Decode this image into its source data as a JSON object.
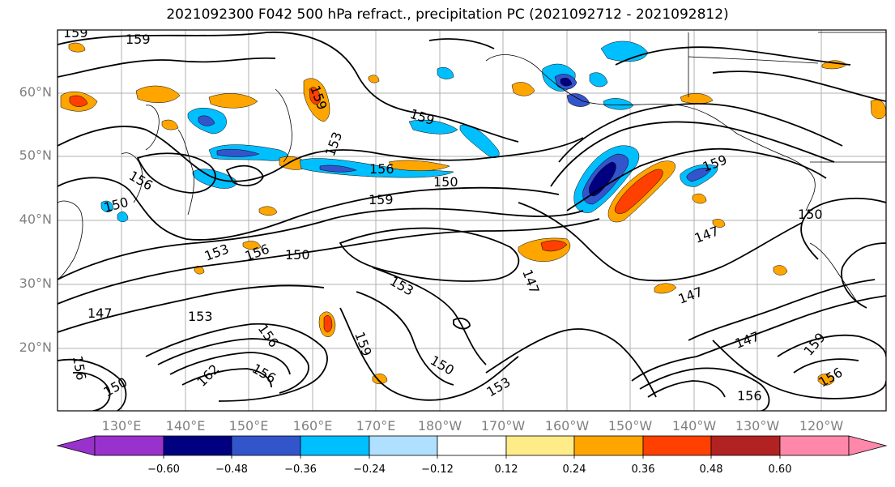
{
  "title": "2021092300 F042 500 hPa refract., precipitation PC (2021092712 - 2021092812)",
  "map": {
    "lat_labels": [
      "60°N",
      "50°N",
      "40°N",
      "30°N",
      "20°N"
    ],
    "lon_labels": [
      "130°E",
      "140°E",
      "150°E",
      "160°E",
      "170°E",
      "180°W",
      "170°W",
      "160°W",
      "150°W",
      "140°W",
      "130°W",
      "120°W"
    ],
    "contour_labels": [
      "159",
      "159",
      "159",
      "159",
      "153",
      "156",
      "156",
      "150",
      "150",
      "159",
      "150",
      "147",
      "147",
      "153",
      "156",
      "150",
      "153",
      "147",
      "147",
      "153",
      "156",
      "159",
      "156",
      "150",
      "150",
      "153",
      "147",
      "162",
      "156",
      "159",
      "159",
      "156",
      "156"
    ]
  },
  "colorbar": {
    "tick_labels": [
      "−0.60",
      "−0.48",
      "−0.36",
      "−0.24",
      "−0.12",
      "0.12",
      "0.24",
      "0.36",
      "0.48",
      "0.60"
    ],
    "colors": [
      "#9932cc",
      "#000080",
      "#3355cc",
      "#00bfff",
      "#b0e0ff",
      "#ffffff",
      "#ffeb88",
      "#ffa500",
      "#ff4000",
      "#b22222",
      "#ff88aa"
    ]
  },
  "colors": {
    "orange": "#ffa500",
    "red_orange": "#ff4000",
    "sky": "#00bfff",
    "navy": "#000080",
    "royal": "#3355cc",
    "light_blue": "#b0e0ff",
    "yellow": "#ffeb88"
  }
}
